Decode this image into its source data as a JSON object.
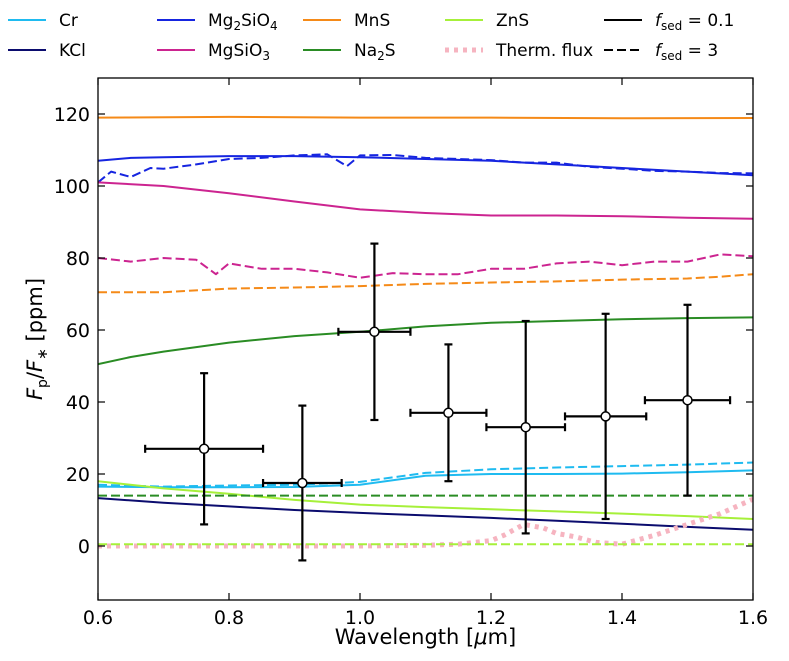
{
  "chart_data": {
    "type": "line",
    "xlabel_parts": {
      "main": "Wavelength [",
      "mu": "μ",
      "unit": "m]"
    },
    "ylabel_parts": {
      "f1": "F",
      "s1": "p",
      "slash": "/",
      "f2": "F",
      "s2": "∗",
      "unit": " [ppm]"
    },
    "xlim": [
      0.6,
      1.6
    ],
    "ylim": [
      -15,
      130
    ],
    "x_ticks": [
      0.6,
      0.8,
      1.0,
      1.2,
      1.4,
      1.6
    ],
    "x_tick_labels": [
      "0.6",
      "0.8",
      "1.0",
      "1.2",
      "1.4",
      "1.6"
    ],
    "y_ticks": [
      0,
      20,
      40,
      60,
      80,
      100,
      120
    ],
    "y_tick_labels": [
      "0",
      "20",
      "40",
      "60",
      "80",
      "100",
      "120"
    ],
    "grid": false,
    "legend_position": "top (above plot), 5 columns",
    "legend": [
      {
        "label": "Cr",
        "color": "#1fbbf0",
        "dash": "solid"
      },
      {
        "label": "KCl",
        "color": "#0b0c6e",
        "dash": "solid"
      },
      {
        "label_main": "Mg",
        "sub1": "2",
        "mid": "SiO",
        "sub2": "4",
        "color": "#1625e0",
        "dash": "solid"
      },
      {
        "label_main": "MgSiO",
        "sub1": "3",
        "color": "#cc2490",
        "dash": "solid"
      },
      {
        "label": "MnS",
        "color": "#f58a18",
        "dash": "solid"
      },
      {
        "label_main": "Na",
        "sub1": "2",
        "mid": "S",
        "color": "#2a8c24",
        "dash": "solid"
      },
      {
        "label": "ZnS",
        "color": "#a6f03a",
        "dash": "solid"
      },
      {
        "label": "Therm. flux",
        "color": "#f6b4c0",
        "dash": "dotted"
      },
      {
        "label_f": "f",
        "sub": "sed",
        "eq": " = 0.1",
        "color": "#000000",
        "dash": "solid"
      },
      {
        "label_f": "f",
        "sub": "sed",
        "eq": " = 3",
        "color": "#000000",
        "dash": "dashed"
      }
    ],
    "series": [
      {
        "name": "MnS",
        "fsed": 0.1,
        "color": "#f58a18",
        "dash": "solid",
        "x": [
          0.6,
          0.8,
          1.0,
          1.2,
          1.4,
          1.6
        ],
        "y": [
          119,
          119.2,
          119,
          119,
          118.8,
          118.9
        ]
      },
      {
        "name": "Mg2SiO4",
        "fsed": 0.1,
        "color": "#1625e0",
        "dash": "solid",
        "x": [
          0.6,
          0.65,
          0.7,
          0.8,
          0.9,
          1.0,
          1.1,
          1.2,
          1.3,
          1.4,
          1.5,
          1.6
        ],
        "y": [
          107,
          107.8,
          108,
          108.3,
          108.3,
          108,
          107.5,
          107,
          106,
          105,
          104,
          103
        ]
      },
      {
        "name": "Mg2SiO4",
        "fsed": 3,
        "color": "#1625e0",
        "dash": "dashed",
        "x": [
          0.6,
          0.62,
          0.65,
          0.68,
          0.7,
          0.75,
          0.8,
          0.85,
          0.9,
          0.95,
          0.98,
          1.0,
          1.05,
          1.1,
          1.15,
          1.2,
          1.25,
          1.3,
          1.35,
          1.4,
          1.45,
          1.5,
          1.55,
          1.6
        ],
        "y": [
          101,
          104,
          102.5,
          105,
          104.8,
          106,
          107.5,
          107.8,
          108.5,
          108.8,
          105.5,
          108.5,
          108.6,
          107.8,
          107.5,
          107.2,
          106.5,
          106.5,
          105.3,
          104.8,
          104.2,
          104,
          103.6,
          103.5
        ]
      },
      {
        "name": "MgSiO3",
        "fsed": 0.1,
        "color": "#cc2490",
        "dash": "solid",
        "x": [
          0.6,
          0.7,
          0.8,
          0.9,
          1.0,
          1.1,
          1.2,
          1.3,
          1.4,
          1.5,
          1.6
        ],
        "y": [
          101,
          100,
          98,
          95.7,
          93.5,
          92.5,
          91.8,
          91.8,
          91.6,
          91.2,
          90.9
        ]
      },
      {
        "name": "MgSiO3",
        "fsed": 3,
        "color": "#cc2490",
        "dash": "dashed",
        "x": [
          0.6,
          0.65,
          0.7,
          0.75,
          0.78,
          0.8,
          0.85,
          0.9,
          0.95,
          1.0,
          1.05,
          1.1,
          1.15,
          1.2,
          1.25,
          1.3,
          1.35,
          1.4,
          1.45,
          1.5,
          1.55,
          1.6
        ],
        "y": [
          80,
          79,
          80,
          79.5,
          75.5,
          78.5,
          77,
          77,
          76,
          74.5,
          75.8,
          75.5,
          75.5,
          77,
          77,
          78.5,
          79,
          78,
          79,
          79,
          81,
          80.5
        ]
      },
      {
        "name": "MnS",
        "fsed": 3,
        "color": "#f58a18",
        "dash": "dashed",
        "x": [
          0.6,
          0.7,
          0.8,
          0.9,
          1.0,
          1.1,
          1.2,
          1.3,
          1.4,
          1.5,
          1.55,
          1.6
        ],
        "y": [
          70.5,
          70.5,
          71.5,
          71.8,
          72.2,
          72.8,
          73.2,
          73.5,
          74,
          74.3,
          74.8,
          75.5
        ]
      },
      {
        "name": "Na2S",
        "fsed": 0.1,
        "color": "#2a8c24",
        "dash": "solid",
        "x": [
          0.6,
          0.65,
          0.7,
          0.8,
          0.9,
          1.0,
          1.1,
          1.2,
          1.3,
          1.4,
          1.5,
          1.6
        ],
        "y": [
          50.5,
          52.5,
          54,
          56.5,
          58.3,
          59.5,
          61,
          62,
          62.5,
          63,
          63.3,
          63.5
        ]
      },
      {
        "name": "Cr",
        "fsed": 3,
        "color": "#1fbbf0",
        "dash": "dashed",
        "x": [
          0.6,
          0.7,
          0.8,
          0.9,
          1.0,
          1.1,
          1.2,
          1.3,
          1.4,
          1.5,
          1.6
        ],
        "y": [
          17,
          16.5,
          16.8,
          17,
          17.8,
          20.3,
          21.3,
          21.8,
          22.2,
          22.6,
          23.2
        ]
      },
      {
        "name": "Cr",
        "fsed": 0.1,
        "color": "#1fbbf0",
        "dash": "solid",
        "x": [
          0.6,
          0.7,
          0.8,
          0.9,
          1.0,
          1.1,
          1.2,
          1.3,
          1.4,
          1.5,
          1.6
        ],
        "y": [
          16.5,
          16.3,
          16.3,
          16.4,
          17,
          19.5,
          20,
          20,
          20.1,
          20.5,
          21
        ]
      },
      {
        "name": "ZnS",
        "fsed": 0.1,
        "color": "#a6f03a",
        "dash": "solid",
        "x": [
          0.6,
          0.7,
          0.8,
          0.9,
          1.0,
          1.1,
          1.2,
          1.3,
          1.4,
          1.5,
          1.6
        ],
        "y": [
          18,
          16,
          14.5,
          12.8,
          11.5,
          10.8,
          10.2,
          9.6,
          9,
          8.3,
          7.5
        ]
      },
      {
        "name": "Na2S",
        "fsed": 3,
        "color": "#2a8c24",
        "dash": "dashed",
        "x": [
          0.6,
          0.8,
          1.0,
          1.2,
          1.4,
          1.6
        ],
        "y": [
          14,
          14,
          14,
          14,
          14,
          14
        ]
      },
      {
        "name": "KCl",
        "fsed": 0.1,
        "color": "#0b0c6e",
        "dash": "solid",
        "x": [
          0.6,
          0.7,
          0.8,
          0.9,
          1.0,
          1.1,
          1.2,
          1.3,
          1.4,
          1.5,
          1.6
        ],
        "y": [
          13.3,
          12,
          11,
          10,
          9.2,
          8.5,
          7.8,
          7,
          6.2,
          5.3,
          4.5
        ]
      },
      {
        "name": "Therm. flux",
        "fsed": 0.1,
        "color": "#f6b4c0",
        "dash": "dotted",
        "x": [
          0.6,
          0.8,
          1.0,
          1.1,
          1.15,
          1.2,
          1.22,
          1.25,
          1.28,
          1.3,
          1.33,
          1.36,
          1.4,
          1.45,
          1.5,
          1.55,
          1.6
        ],
        "y": [
          0,
          0,
          0,
          0.2,
          0.5,
          1.5,
          3,
          6,
          5,
          3.5,
          2.5,
          1,
          0.5,
          3,
          6,
          9,
          13
        ]
      },
      {
        "name": "ZnS",
        "fsed": 3,
        "color": "#a6f03a",
        "dash": "dashed",
        "x": [
          0.6,
          0.8,
          1.0,
          1.2,
          1.4,
          1.6
        ],
        "y": [
          0.5,
          0.5,
          0.5,
          0.5,
          0.5,
          0.5
        ]
      }
    ],
    "observations": [
      {
        "x": 0.762,
        "y": 27,
        "xerr": 0.09,
        "yerr_lo": 21,
        "yerr_hi": 21
      },
      {
        "x": 0.912,
        "y": 17.5,
        "xerr": 0.06,
        "yerr_lo": 21.5,
        "yerr_hi": 21.5
      },
      {
        "x": 1.022,
        "y": 59.5,
        "xerr": 0.055,
        "yerr_lo": 24.5,
        "yerr_hi": 24.5
      },
      {
        "x": 1.135,
        "y": 37,
        "xerr": 0.058,
        "yerr_lo": 19,
        "yerr_hi": 19
      },
      {
        "x": 1.253,
        "y": 33,
        "xerr": 0.06,
        "yerr_lo": 29.5,
        "yerr_hi": 29.5
      },
      {
        "x": 1.375,
        "y": 36,
        "xerr": 0.062,
        "yerr_lo": 28.5,
        "yerr_hi": 28.5
      },
      {
        "x": 1.5,
        "y": 40.5,
        "xerr": 0.065,
        "yerr_lo": 26.5,
        "yerr_hi": 26.5
      }
    ]
  }
}
